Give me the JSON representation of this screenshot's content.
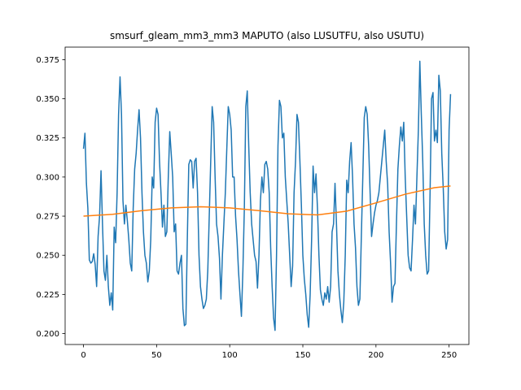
{
  "chart_data": {
    "type": "line",
    "title": "smsurf_gleam_mm3_mm3 MAPUTO (also LUSUTFU, also USUTU)",
    "xlim": [
      -12.55,
      263.55
    ],
    "xticks": [
      0,
      50,
      100,
      150,
      200,
      250
    ],
    "ylim": [
      0.193,
      0.383
    ],
    "yticks": [
      {
        "value": 0.2,
        "label": "0.200"
      },
      {
        "value": 0.225,
        "label": "0.225"
      },
      {
        "value": 0.25,
        "label": "0.250"
      },
      {
        "value": 0.275,
        "label": "0.275"
      },
      {
        "value": 0.3,
        "label": "0.300"
      },
      {
        "value": 0.325,
        "label": "0.325"
      },
      {
        "value": 0.35,
        "label": "0.350"
      },
      {
        "value": 0.375,
        "label": "0.375"
      }
    ],
    "series": [
      {
        "color": "#1f77b4",
        "x": [
          0,
          1,
          2,
          3,
          4,
          5,
          6,
          7,
          8,
          9,
          10,
          11,
          12,
          13,
          14,
          15,
          16,
          17,
          18,
          19,
          20,
          21,
          22,
          23,
          24,
          25,
          26,
          27,
          28,
          29,
          30,
          31,
          32,
          33,
          34,
          35,
          36,
          37,
          38,
          39,
          40,
          41,
          42,
          43,
          44,
          45,
          46,
          47,
          48,
          49,
          50,
          51,
          52,
          53,
          54,
          55,
          56,
          57,
          58,
          59,
          60,
          61,
          62,
          63,
          64,
          65,
          66,
          67,
          68,
          69,
          70,
          71,
          72,
          73,
          74,
          75,
          76,
          77,
          78,
          79,
          80,
          81,
          82,
          83,
          84,
          85,
          86,
          87,
          88,
          89,
          90,
          91,
          92,
          93,
          94,
          95,
          96,
          97,
          98,
          99,
          100,
          101,
          102,
          103,
          104,
          105,
          106,
          107,
          108,
          109,
          110,
          111,
          112,
          113,
          114,
          115,
          116,
          117,
          118,
          119,
          120,
          121,
          122,
          123,
          124,
          125,
          126,
          127,
          128,
          129,
          130,
          131,
          132,
          133,
          134,
          135,
          136,
          137,
          138,
          139,
          140,
          141,
          142,
          143,
          144,
          145,
          146,
          147,
          148,
          149,
          150,
          151,
          152,
          153,
          154,
          155,
          156,
          157,
          158,
          159,
          160,
          161,
          162,
          163,
          164,
          165,
          166,
          167,
          168,
          169,
          170,
          171,
          172,
          173,
          174,
          175,
          176,
          177,
          178,
          179,
          180,
          181,
          182,
          183,
          184,
          185,
          186,
          187,
          188,
          189,
          190,
          191,
          192,
          193,
          194,
          195,
          196,
          197,
          198,
          199,
          200,
          201,
          202,
          203,
          204,
          205,
          206,
          207,
          208,
          209,
          210,
          211,
          212,
          213,
          214,
          215,
          216,
          217,
          218,
          219,
          220,
          221,
          222,
          223,
          224,
          225,
          226,
          227,
          228,
          229,
          230,
          231,
          232,
          233,
          234,
          235,
          236,
          237,
          238,
          239,
          240,
          241,
          242,
          243,
          244,
          245,
          246,
          247,
          248,
          249,
          250,
          251
        ],
        "values": [
          0.318,
          0.328,
          0.296,
          0.28,
          0.247,
          0.245,
          0.246,
          0.251,
          0.244,
          0.23,
          0.262,
          0.275,
          0.304,
          0.27,
          0.24,
          0.234,
          0.25,
          0.23,
          0.218,
          0.226,
          0.215,
          0.268,
          0.258,
          0.29,
          0.34,
          0.364,
          0.34,
          0.285,
          0.27,
          0.282,
          0.272,
          0.26,
          0.245,
          0.24,
          0.28,
          0.305,
          0.315,
          0.33,
          0.343,
          0.325,
          0.29,
          0.265,
          0.25,
          0.245,
          0.233,
          0.24,
          0.26,
          0.3,
          0.293,
          0.335,
          0.344,
          0.34,
          0.31,
          0.29,
          0.268,
          0.282,
          0.262,
          0.265,
          0.3,
          0.329,
          0.315,
          0.3,
          0.265,
          0.27,
          0.24,
          0.238,
          0.245,
          0.25,
          0.216,
          0.205,
          0.206,
          0.26,
          0.308,
          0.311,
          0.31,
          0.293,
          0.31,
          0.312,
          0.29,
          0.25,
          0.23,
          0.222,
          0.216,
          0.218,
          0.222,
          0.24,
          0.275,
          0.31,
          0.345,
          0.335,
          0.3,
          0.27,
          0.262,
          0.248,
          0.222,
          0.25,
          0.27,
          0.29,
          0.318,
          0.345,
          0.34,
          0.33,
          0.3,
          0.3,
          0.275,
          0.26,
          0.24,
          0.225,
          0.211,
          0.24,
          0.28,
          0.345,
          0.355,
          0.32,
          0.29,
          0.27,
          0.26,
          0.25,
          0.246,
          0.229,
          0.25,
          0.285,
          0.3,
          0.29,
          0.308,
          0.31,
          0.305,
          0.29,
          0.255,
          0.23,
          0.21,
          0.202,
          0.25,
          0.32,
          0.349,
          0.345,
          0.325,
          0.328,
          0.3,
          0.285,
          0.27,
          0.25,
          0.23,
          0.243,
          0.29,
          0.31,
          0.34,
          0.335,
          0.31,
          0.282,
          0.25,
          0.235,
          0.225,
          0.212,
          0.204,
          0.225,
          0.26,
          0.307,
          0.29,
          0.302,
          0.28,
          0.25,
          0.228,
          0.222,
          0.218,
          0.226,
          0.222,
          0.23,
          0.22,
          0.23,
          0.265,
          0.27,
          0.296,
          0.27,
          0.24,
          0.225,
          0.215,
          0.207,
          0.22,
          0.25,
          0.298,
          0.29,
          0.31,
          0.322,
          0.3,
          0.27,
          0.255,
          0.23,
          0.218,
          0.222,
          0.262,
          0.3,
          0.338,
          0.345,
          0.34,
          0.32,
          0.29,
          0.262,
          0.27,
          0.277,
          0.282,
          0.285,
          0.29,
          0.3,
          0.31,
          0.32,
          0.33,
          0.31,
          0.295,
          0.265,
          0.245,
          0.22,
          0.23,
          0.232,
          0.27,
          0.305,
          0.32,
          0.332,
          0.323,
          0.335,
          0.3,
          0.275,
          0.25,
          0.242,
          0.24,
          0.26,
          0.282,
          0.27,
          0.3,
          0.33,
          0.374,
          0.34,
          0.31,
          0.27,
          0.25,
          0.238,
          0.24,
          0.29,
          0.35,
          0.354,
          0.323,
          0.33,
          0.322,
          0.365,
          0.355,
          0.315,
          0.293,
          0.265,
          0.254,
          0.26,
          0.33,
          0.353
        ]
      },
      {
        "color": "#ff7f0e",
        "x": [
          0,
          20,
          40,
          60,
          80,
          100,
          120,
          140,
          160,
          180,
          200,
          220,
          240,
          251
        ],
        "values": [
          0.275,
          0.2762,
          0.2785,
          0.2803,
          0.281,
          0.2803,
          0.2785,
          0.2765,
          0.2758,
          0.2782,
          0.2835,
          0.289,
          0.2932,
          0.2943
        ]
      }
    ]
  }
}
